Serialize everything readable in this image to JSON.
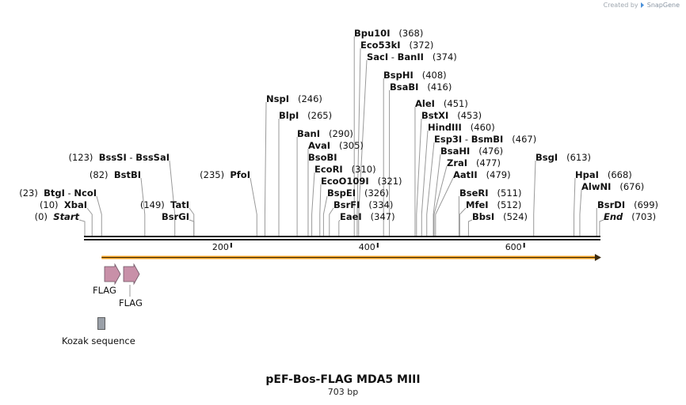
{
  "credit": {
    "prefix": "Created by",
    "brand": "SnapGene",
    "icon": "snapgene-logo-icon"
  },
  "sequence": {
    "name": "pEF-Bos-FLAG MDA5 MIII",
    "length_label": "703 bp",
    "length": 703
  },
  "axis": {
    "ticks": [
      {
        "pos": 200,
        "label": "200"
      },
      {
        "pos": 400,
        "label": "400"
      },
      {
        "pos": 600,
        "label": "600"
      }
    ]
  },
  "sites": [
    {
      "name": "Bpu10I",
      "pos": 368,
      "label": "Bpu10I",
      "pos_label": "(368)"
    },
    {
      "name": "Eco53kI",
      "pos": 372,
      "label": "Eco53kI",
      "pos_label": "(372)"
    },
    {
      "name": "SacI-BanII",
      "pos": 374,
      "label": "SacI",
      "label2": "BanII",
      "pos_label": "(374)"
    },
    {
      "name": "BspHI",
      "pos": 408,
      "label": "BspHI",
      "pos_label": "(408)"
    },
    {
      "name": "BsaBI",
      "pos": 416,
      "label": "BsaBI",
      "pos_label": "(416)"
    },
    {
      "name": "NspI",
      "pos": 246,
      "label": "NspI",
      "pos_label": "(246)"
    },
    {
      "name": "AleI",
      "pos": 451,
      "label": "AleI",
      "pos_label": "(451)"
    },
    {
      "name": "BlpI",
      "pos": 265,
      "label": "BlpI",
      "pos_label": "(265)"
    },
    {
      "name": "BstXI",
      "pos": 453,
      "label": "BstXI",
      "pos_label": "(453)"
    },
    {
      "name": "HindIII",
      "pos": 460,
      "label": "HindIII",
      "pos_label": "(460)"
    },
    {
      "name": "BanI",
      "pos": 290,
      "label": "BanI",
      "pos_label": "(290)"
    },
    {
      "name": "Esp3I-BsmBI",
      "pos": 467,
      "label": "Esp3I",
      "label2": "BsmBI",
      "pos_label": "(467)"
    },
    {
      "name": "AvaI",
      "pos": 305,
      "label": "AvaI",
      "pos_label": "(305)"
    },
    {
      "name": "BsaHI",
      "pos": 476,
      "label": "BsaHI",
      "pos_label": "(476)"
    },
    {
      "name": "BssSI-BssSaI",
      "pos": 123,
      "label": "BssSI",
      "label2": "BssSaI",
      "pos_label": "(123)"
    },
    {
      "name": "BsoBI",
      "pos": 305,
      "label": "BsoBI",
      "pos_label": ""
    },
    {
      "name": "BsgI",
      "pos": 613,
      "label": "BsgI",
      "pos_label": "(613)"
    },
    {
      "name": "ZraI",
      "pos": 477,
      "label": "ZraI",
      "pos_label": "(477)"
    },
    {
      "name": "EcoRI",
      "pos": 310,
      "label": "EcoRI",
      "pos_label": "(310)"
    },
    {
      "name": "BstBI",
      "pos": 82,
      "label": "BstBI",
      "pos_label": "(82)"
    },
    {
      "name": "PfoI",
      "pos": 235,
      "label": "PfoI",
      "pos_label": "(235)"
    },
    {
      "name": "HpaI",
      "pos": 668,
      "label": "HpaI",
      "pos_label": "(668)"
    },
    {
      "name": "AatII",
      "pos": 479,
      "label": "AatII",
      "pos_label": "(479)"
    },
    {
      "name": "EcoO109I",
      "pos": 321,
      "label": "EcoO109I",
      "pos_label": "(321)"
    },
    {
      "name": "AlwNI",
      "pos": 676,
      "label": "AlwNI",
      "pos_label": "(676)"
    },
    {
      "name": "BtgI-NcoI",
      "pos": 23,
      "label": "BtgI",
      "label2": "NcoI",
      "pos_label": "(23)"
    },
    {
      "name": "BspEI",
      "pos": 326,
      "label": "BspEI",
      "pos_label": "(326)"
    },
    {
      "name": "BseRI",
      "pos": 511,
      "label": "BseRI",
      "pos_label": "(511)"
    },
    {
      "name": "XbaI",
      "pos": 10,
      "label": "XbaI",
      "pos_label": "(10)"
    },
    {
      "name": "TatI",
      "pos": 149,
      "label": "TatI",
      "pos_label": "(149)"
    },
    {
      "name": "BsrFI",
      "pos": 334,
      "label": "BsrFI",
      "pos_label": "(334)"
    },
    {
      "name": "MfeI",
      "pos": 512,
      "label": "MfeI",
      "pos_label": "(512)"
    },
    {
      "name": "BsrDI",
      "pos": 699,
      "label": "BsrDI",
      "pos_label": "(699)"
    },
    {
      "name": "Start",
      "pos": 0,
      "label": "Start",
      "pos_label": "(0)",
      "italic": true
    },
    {
      "name": "BsrGI",
      "pos": 149,
      "label": "BsrGI",
      "pos_label": ""
    },
    {
      "name": "EaeI",
      "pos": 347,
      "label": "EaeI",
      "pos_label": "(347)"
    },
    {
      "name": "BbsI",
      "pos": 524,
      "label": "BbsI",
      "pos_label": "(524)"
    },
    {
      "name": "End",
      "pos": 703,
      "label": "End",
      "pos_label": "(703)",
      "italic": true
    }
  ],
  "features": [
    {
      "name": "FLAG",
      "label": "FLAG",
      "start": 25,
      "end": 48,
      "type": "arrow",
      "color": "#c890a8"
    },
    {
      "name": "FLAG",
      "label": "FLAG",
      "start": 52,
      "end": 76,
      "type": "arrow",
      "color": "#c890a8"
    },
    {
      "name": "Kozak sequence",
      "label": "Kozak sequence",
      "start": 18,
      "end": 28,
      "type": "box",
      "color": "#9aa0a8"
    }
  ],
  "orf": {
    "start": 23,
    "end": 703,
    "color": "#f0a020"
  }
}
